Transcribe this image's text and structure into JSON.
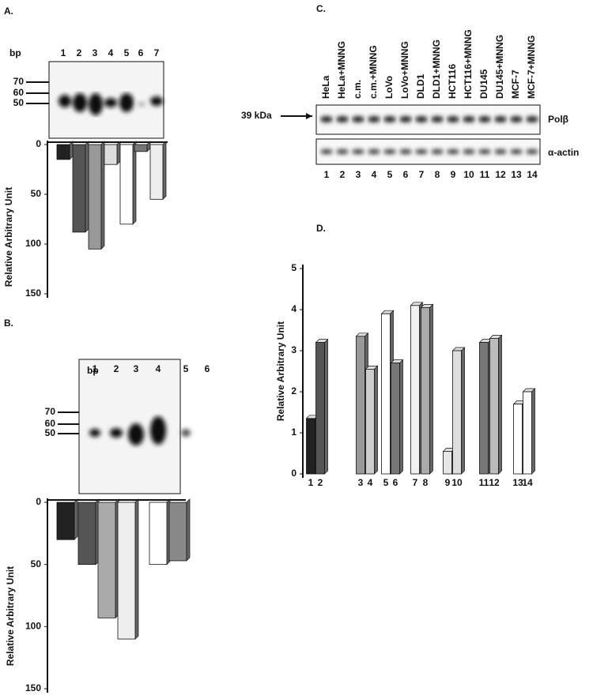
{
  "chart_data": [
    {
      "type": "bar",
      "panel": "A.",
      "ylabel": "Relative Arbitrary Unit",
      "categories": [
        "1",
        "2",
        "3",
        "4",
        "5",
        "6",
        "7"
      ],
      "values": [
        15,
        88,
        105,
        20,
        80,
        7,
        55
      ],
      "colors": [
        "#222",
        "#555",
        "#999",
        "#ddd",
        "#fff",
        "#777",
        "#eee"
      ],
      "ylim": [
        0,
        150
      ],
      "yticks": [
        0,
        50,
        100,
        150
      ],
      "inverted": true
    },
    {
      "type": "bar",
      "panel": "B.",
      "ylabel": "Relative Arbitrary Unit",
      "categories": [
        "1",
        "2",
        "3",
        "4",
        "5",
        "6"
      ],
      "values": [
        30,
        50,
        93,
        110,
        50,
        47
      ],
      "colors": [
        "#222",
        "#555",
        "#aaa",
        "#eee",
        "#fff",
        "#888"
      ],
      "ylim": [
        0,
        150
      ],
      "yticks": [
        0,
        50,
        100,
        150
      ],
      "inverted": true
    },
    {
      "type": "bar",
      "panel": "D.",
      "ylabel": "Relative Arbitrary Unit",
      "categories": [
        "1",
        "2",
        "3",
        "4",
        "5",
        "6",
        "7",
        "8",
        "9",
        "10",
        "11",
        "12",
        "13",
        "14"
      ],
      "values": [
        1.35,
        3.2,
        3.35,
        2.55,
        3.9,
        2.7,
        4.1,
        4.05,
        0.55,
        3.0,
        3.2,
        3.3,
        1.7,
        2.0
      ],
      "colors": [
        "#222",
        "#555",
        "#999",
        "#ccc",
        "#fff",
        "#777",
        "#f2f2f2",
        "#aaa",
        "#e6e6e6",
        "#ddd",
        "#777",
        "#bbb",
        "#fff",
        "#fafafa"
      ],
      "ylim": [
        0,
        5
      ],
      "yticks": [
        0,
        1,
        2,
        3,
        4,
        5
      ],
      "inverted": false
    }
  ],
  "gels": [
    {
      "bp": "bp",
      "markers": [
        "70",
        "60",
        "50"
      ]
    },
    {
      "bp": "bp",
      "markers": [
        "70",
        "60",
        "50"
      ]
    }
  ],
  "blot": {
    "panel": "C.",
    "samples": [
      "HeLa",
      "HeLa+MNNG",
      "c.m.",
      "c.m.+MNNG",
      "LoVo",
      "LoVo+MNNG",
      "DLD1",
      "DLD1+MNNG",
      "HCT116",
      "HCT116+MNNG",
      "DU145",
      "DU145+MNNG",
      "MCF-7",
      "MCF-7+MNNG"
    ],
    "lanes": [
      "1",
      "2",
      "3",
      "4",
      "5",
      "6",
      "7",
      "8",
      "9",
      "10",
      "11",
      "12",
      "13",
      "14"
    ],
    "marker": "39 kDa",
    "bands": [
      "Polβ",
      "α-actin"
    ]
  }
}
